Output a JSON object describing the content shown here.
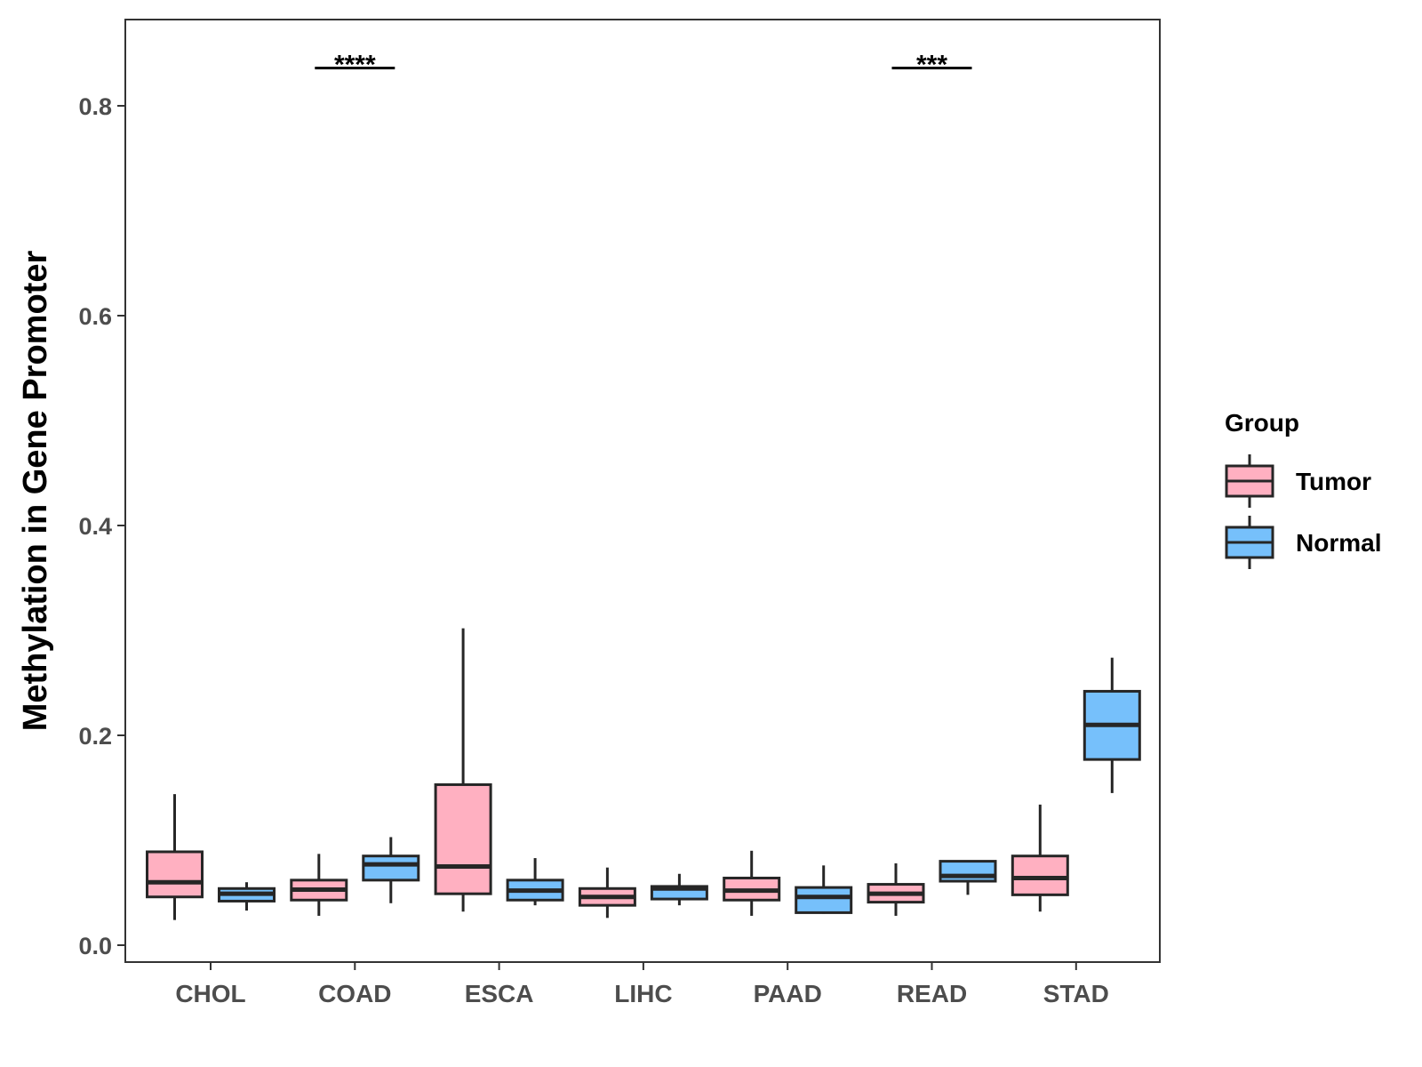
{
  "chart_data": {
    "type": "boxplot",
    "title": "",
    "xlabel": "",
    "ylabel": "Methylation in Gene Promoter",
    "ylim": [
      -0.02,
      0.88
    ],
    "yticks": [
      0.0,
      0.2,
      0.4,
      0.6,
      0.8
    ],
    "ytick_labels": [
      "0.0",
      "0.2",
      "0.4",
      "0.6",
      "0.8"
    ],
    "grid": false,
    "categories": [
      "CHOL",
      "COAD",
      "ESCA",
      "LIHC",
      "PAAD",
      "READ",
      "STAD"
    ],
    "legend": {
      "title": "Group",
      "position": "right",
      "entries": [
        {
          "name": "Tumor",
          "color": "#ffb0c1"
        },
        {
          "name": "Normal",
          "color": "#76c0fb"
        }
      ]
    },
    "series": [
      {
        "name": "Tumor",
        "color": "#ffb0c1",
        "boxes": [
          {
            "category": "CHOL",
            "min": 0.024,
            "q1": 0.046,
            "median": 0.06,
            "q3": 0.089,
            "max": 0.144
          },
          {
            "category": "COAD",
            "min": 0.028,
            "q1": 0.043,
            "median": 0.053,
            "q3": 0.062,
            "max": 0.087
          },
          {
            "category": "ESCA",
            "min": 0.032,
            "q1": 0.049,
            "median": 0.075,
            "q3": 0.153,
            "max": 0.302
          },
          {
            "category": "LIHC",
            "min": 0.026,
            "q1": 0.038,
            "median": 0.046,
            "q3": 0.054,
            "max": 0.074
          },
          {
            "category": "PAAD",
            "min": 0.028,
            "q1": 0.043,
            "median": 0.052,
            "q3": 0.064,
            "max": 0.09
          },
          {
            "category": "READ",
            "min": 0.028,
            "q1": 0.041,
            "median": 0.049,
            "q3": 0.058,
            "max": 0.078
          },
          {
            "category": "STAD",
            "min": 0.032,
            "q1": 0.048,
            "median": 0.064,
            "q3": 0.085,
            "max": 0.134
          }
        ]
      },
      {
        "name": "Normal",
        "color": "#76c0fb",
        "boxes": [
          {
            "category": "CHOL",
            "min": 0.033,
            "q1": 0.042,
            "median": 0.049,
            "q3": 0.054,
            "max": 0.06
          },
          {
            "category": "COAD",
            "min": 0.04,
            "q1": 0.062,
            "median": 0.077,
            "q3": 0.085,
            "max": 0.103
          },
          {
            "category": "ESCA",
            "min": 0.038,
            "q1": 0.043,
            "median": 0.052,
            "q3": 0.062,
            "max": 0.083
          },
          {
            "category": "LIHC",
            "min": 0.038,
            "q1": 0.044,
            "median": 0.054,
            "q3": 0.056,
            "max": 0.068
          },
          {
            "category": "PAAD",
            "min": 0.03,
            "q1": 0.031,
            "median": 0.046,
            "q3": 0.055,
            "max": 0.076
          },
          {
            "category": "READ",
            "min": 0.048,
            "q1": 0.061,
            "median": 0.066,
            "q3": 0.08,
            "max": 0.08
          },
          {
            "category": "STAD",
            "min": 0.145,
            "q1": 0.177,
            "median": 0.21,
            "q3": 0.242,
            "max": 0.274
          }
        ]
      }
    ],
    "annotations": [
      {
        "category": "COAD",
        "label": "****",
        "y": 0.836
      },
      {
        "category": "READ",
        "label": "***",
        "y": 0.836
      }
    ]
  }
}
